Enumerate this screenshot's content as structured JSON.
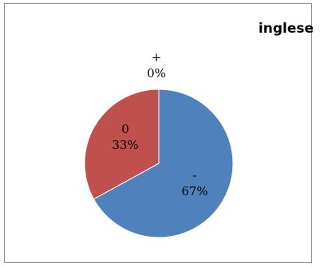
{
  "chart_data": {
    "type": "pie",
    "title": "inglese",
    "categories": [
      "-",
      "0",
      "+"
    ],
    "values": [
      67,
      33,
      0
    ],
    "percent_labels": [
      "67%",
      "33%",
      "0%"
    ],
    "colors": [
      "#4f81bd",
      "#c0504d",
      "#9bbb59"
    ],
    "legend": "none"
  }
}
